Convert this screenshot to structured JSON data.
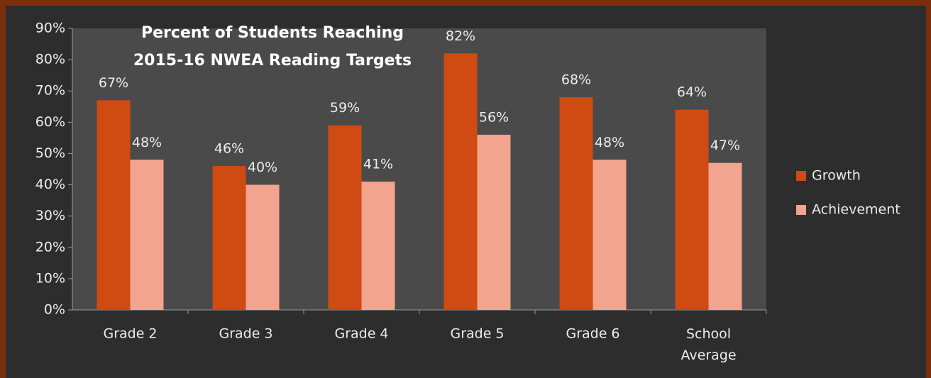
{
  "chart_data": {
    "type": "bar",
    "title": [
      "Percent of Students Reaching",
      "2015-16 NWEA Reading Targets"
    ],
    "categories": [
      "Grade 2",
      "Grade 3",
      "Grade 4",
      "Grade 5",
      "Grade 6",
      "School Average"
    ],
    "series": [
      {
        "name": "Growth",
        "color": "#cf4b12",
        "values": [
          67,
          46,
          59,
          82,
          68,
          64
        ],
        "value_labels": [
          "67%",
          "46%",
          "59%",
          "82%",
          "68%",
          "64%"
        ]
      },
      {
        "name": "Achievement",
        "color": "#f2a48e",
        "values": [
          48,
          40,
          41,
          56,
          48,
          47
        ],
        "value_labels": [
          "48%",
          "40%",
          "41%",
          "56%",
          "48%",
          "47%"
        ]
      }
    ],
    "ylim": [
      0,
      90
    ],
    "yticks": [
      {
        "value": 0,
        "label": "0%"
      },
      {
        "value": 10,
        "label": "10%"
      },
      {
        "value": 20,
        "label": "20%"
      },
      {
        "value": 30,
        "label": "30%"
      },
      {
        "value": 40,
        "label": "40%"
      },
      {
        "value": 50,
        "label": "50%"
      },
      {
        "value": 60,
        "label": "60%"
      },
      {
        "value": 70,
        "label": "70%"
      },
      {
        "value": 80,
        "label": "80%"
      },
      {
        "value": 90,
        "label": "90%"
      }
    ],
    "legend": "right"
  }
}
